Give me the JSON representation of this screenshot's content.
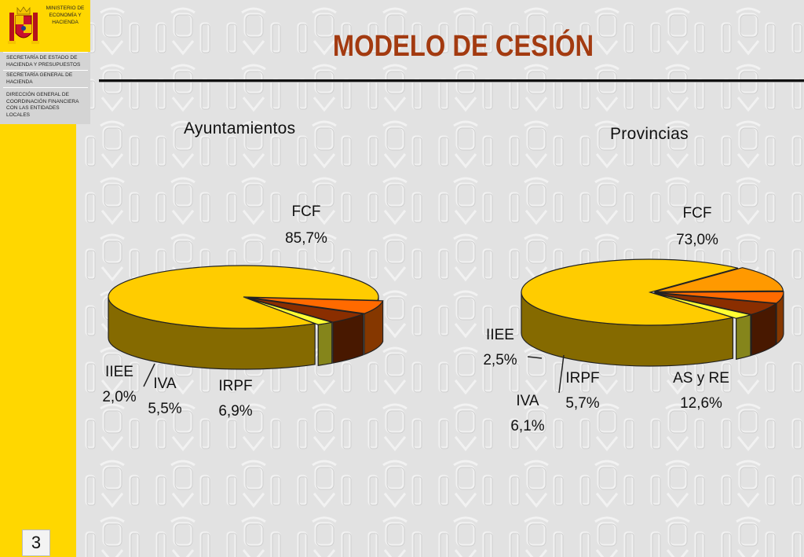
{
  "header": {
    "ministry_lines": [
      "MINISTERIO DE",
      "ECONOMÍA Y",
      "HACIENDA"
    ],
    "org_lines": [
      "SECRETARÍA DE ESTADO DE",
      "HACIENDA Y PRESUPUESTOS",
      "SECRETARÍA GENERAL DE",
      "HACIENDA",
      "DIRECCIÓN GENERAL DE",
      "COORDINACIÓN FINANCIERA",
      "CON LAS ENTIDADES",
      "LOCALES"
    ]
  },
  "slide": {
    "title": "MODELO DE CESIÓN",
    "page_number": "3"
  },
  "colors": {
    "sidebar": "#ffd700",
    "title": "#a33a10"
  },
  "chart_data": [
    {
      "type": "pie",
      "title": "Ayuntamientos",
      "legend": "none",
      "slices": [
        {
          "name": "FCF",
          "value": 85.7,
          "label": "85,7%",
          "color": "#ffcc00"
        },
        {
          "name": "IRPF",
          "value": 6.9,
          "label": "6,9%",
          "color": "#ff6a00"
        },
        {
          "name": "IVA",
          "value": 5.5,
          "label": "5,5%",
          "color": "#8a2e00"
        },
        {
          "name": "IIEE",
          "value": 2.0,
          "label": "2,0%",
          "color": "#ffff33"
        }
      ]
    },
    {
      "type": "pie",
      "title": "Provincias",
      "legend": "none",
      "slices": [
        {
          "name": "FCF",
          "value": 73.0,
          "label": "73,0%",
          "color": "#ffcc00"
        },
        {
          "name": "AS y RE",
          "value": 12.6,
          "label": "12,6%",
          "color": "#ff9900"
        },
        {
          "name": "IRPF",
          "value": 5.7,
          "label": "5,7%",
          "color": "#ff6a00"
        },
        {
          "name": "IVA",
          "value": 6.1,
          "label": "6,1%",
          "color": "#8a2e00"
        },
        {
          "name": "IIEE",
          "value": 2.5,
          "label": "2,5%",
          "color": "#ffff33"
        }
      ]
    }
  ]
}
